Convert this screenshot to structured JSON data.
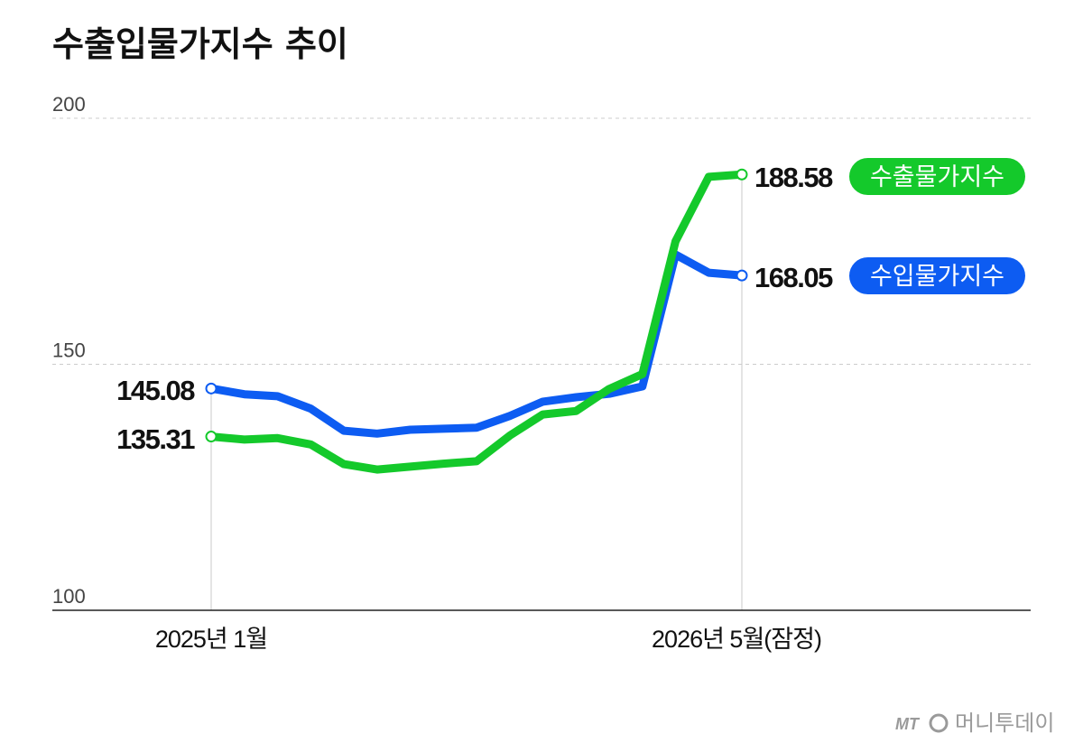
{
  "chart_data": {
    "type": "line",
    "title": "수출입물가지수 추이",
    "ylim": [
      100,
      200
    ],
    "yticks": [
      "200",
      "150",
      "100"
    ],
    "xtick_labels": [
      "2025년 1월",
      "2026년 5월(잠정)"
    ],
    "grid": true,
    "series": [
      {
        "name": "수입물가지수",
        "color": "#0d5cf2",
        "values": [
          145.08,
          143.9,
          143.5,
          141.0,
          136.5,
          135.9,
          136.7,
          136.9,
          137.1,
          139.5,
          142.4,
          143.3,
          144.0,
          145.5,
          172.3,
          168.6,
          168.05
        ],
        "end_label": "168.05"
      },
      {
        "name": "수출물가지수",
        "color": "#14c92b",
        "values": [
          135.31,
          134.7,
          135.0,
          133.7,
          129.7,
          128.6,
          129.2,
          129.8,
          130.3,
          135.5,
          139.8,
          140.5,
          145.0,
          148.0,
          175.0,
          188.1,
          188.58
        ],
        "end_label": "188.58"
      }
    ],
    "start_labels": {
      "import": "145.08",
      "export": "135.31"
    }
  },
  "logo": {
    "mark": "MT",
    "name": "머니투데이"
  }
}
